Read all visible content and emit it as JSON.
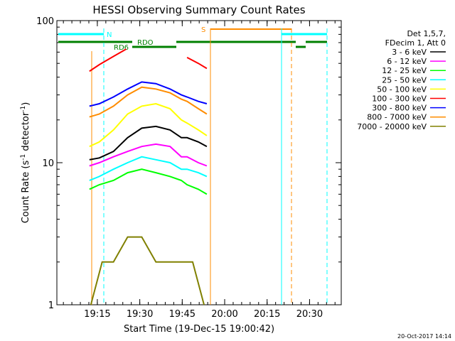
{
  "chart_data": {
    "type": "line",
    "title": "HESSI Observing Summary Count Rates",
    "xlabel": "Start Time (19-Dec-15 19:00:42)",
    "ylabel": "Count Rate (s",
    "ylabel_sup": "-1",
    "ylabel_tail": " detector",
    "ylabel_close": ")",
    "yscale": "log",
    "ylim": [
      1,
      100
    ],
    "xlim_minutes": [
      0,
      40.5
    ],
    "x_unit": "minutes since start time",
    "x_ticks": [
      {
        "value": 14.3,
        "label": "19:15"
      },
      {
        "value": 29.3,
        "label": "19:30"
      },
      {
        "value": 44.3,
        "label": "19:45"
      },
      {
        "value": 59.3,
        "label": "20:00"
      },
      {
        "value": 74.3,
        "label": "20:15"
      },
      {
        "value": 89.3,
        "label": "20:30"
      }
    ],
    "y_ticks": [
      {
        "value": 1,
        "label": "1"
      },
      {
        "value": 10,
        "label": "10"
      },
      {
        "value": 100,
        "label": "100"
      }
    ],
    "legend_header": [
      "Det 1,5,7,",
      "FDecim 1, Att 0"
    ],
    "series": [
      {
        "name": "3 - 6 keV",
        "color": "#000000",
        "segments": [
          [
            [
              11.5,
              10.5
            ],
            [
              15,
              10.8
            ],
            [
              20,
              12
            ],
            [
              25,
              15
            ],
            [
              30,
              17.5
            ],
            [
              35,
              18
            ],
            [
              40,
              17
            ],
            [
              44,
              15
            ],
            [
              46,
              15
            ],
            [
              50,
              14
            ],
            [
              53,
              13
            ]
          ]
        ]
      },
      {
        "name": "6 - 12 keV",
        "color": "#ff00ff",
        "segments": [
          [
            [
              11.5,
              9.5
            ],
            [
              15,
              10
            ],
            [
              20,
              11
            ],
            [
              25,
              12
            ],
            [
              30,
              13
            ],
            [
              35,
              13.5
            ],
            [
              40,
              13
            ],
            [
              44,
              11
            ],
            [
              46,
              11
            ],
            [
              50,
              10
            ],
            [
              53,
              9.5
            ]
          ]
        ]
      },
      {
        "name": "12 - 25 keV",
        "color": "#00ff00",
        "segments": [
          [
            [
              11.5,
              6.5
            ],
            [
              15,
              7
            ],
            [
              20,
              7.5
            ],
            [
              25,
              8.5
            ],
            [
              30,
              9
            ],
            [
              35,
              8.5
            ],
            [
              40,
              8
            ],
            [
              44,
              7.5
            ],
            [
              46,
              7
            ],
            [
              50,
              6.5
            ],
            [
              53,
              6
            ]
          ]
        ]
      },
      {
        "name": "25 - 50 keV",
        "color": "#00ffff",
        "segments": [
          [
            [
              11.5,
              7.5
            ],
            [
              15,
              8
            ],
            [
              20,
              9
            ],
            [
              25,
              10
            ],
            [
              30,
              11
            ],
            [
              35,
              10.5
            ],
            [
              40,
              10
            ],
            [
              44,
              9
            ],
            [
              46,
              9
            ],
            [
              50,
              8.5
            ],
            [
              53,
              8
            ]
          ]
        ]
      },
      {
        "name": "50 - 100 keV",
        "color": "#ffff00",
        "segments": [
          [
            [
              11.5,
              13
            ],
            [
              15,
              14
            ],
            [
              20,
              17
            ],
            [
              25,
              22
            ],
            [
              30,
              25
            ],
            [
              35,
              26
            ],
            [
              40,
              24
            ],
            [
              44,
              20
            ],
            [
              46,
              19
            ],
            [
              50,
              17
            ],
            [
              53,
              15.5
            ]
          ]
        ]
      },
      {
        "name": "100 - 300 keV",
        "color": "#ff0000",
        "segments": [
          [
            [
              11.5,
              44
            ],
            [
              15,
              49
            ],
            [
              20,
              56
            ],
            [
              24.5,
              63
            ]
          ],
          [
            [
              46,
              55
            ],
            [
              50,
              50
            ],
            [
              53,
              46
            ]
          ]
        ]
      },
      {
        "name": "300 - 800 keV",
        "color": "#0000ff",
        "segments": [
          [
            [
              11.5,
              25
            ],
            [
              15,
              26
            ],
            [
              20,
              29
            ],
            [
              25,
              33
            ],
            [
              30,
              37
            ],
            [
              35,
              36
            ],
            [
              40,
              33
            ],
            [
              44,
              30
            ],
            [
              46,
              29
            ],
            [
              50,
              27
            ],
            [
              53,
              26
            ]
          ]
        ]
      },
      {
        "name": "800 - 7000 keV",
        "color": "#ff8c00",
        "segments": [
          [
            [
              11.5,
              21
            ],
            [
              15,
              22
            ],
            [
              20,
              25
            ],
            [
              25,
              30
            ],
            [
              30,
              34
            ],
            [
              35,
              33
            ],
            [
              40,
              31
            ],
            [
              44,
              28
            ],
            [
              46,
              27
            ],
            [
              50,
              24
            ],
            [
              53,
              22
            ]
          ]
        ]
      },
      {
        "name": "7000 - 20000 keV",
        "color": "#808000",
        "segments": [
          [
            [
              12,
              1
            ],
            [
              16,
              2
            ],
            [
              20,
              2
            ],
            [
              25,
              3
            ],
            [
              30,
              3
            ],
            [
              35,
              2
            ],
            [
              40,
              2
            ],
            [
              44,
              2
            ],
            [
              48,
              2
            ],
            [
              52,
              1
            ]
          ]
        ]
      }
    ],
    "annotations": [
      {
        "text": "N",
        "color": "#00ffff"
      },
      {
        "text": "RDO",
        "color": "#008000"
      },
      {
        "text": "RD6",
        "color": "#008000"
      },
      {
        "text": "S",
        "color": "#ff8c00"
      }
    ],
    "timestamp": "20-Oct-2017 14:14"
  }
}
